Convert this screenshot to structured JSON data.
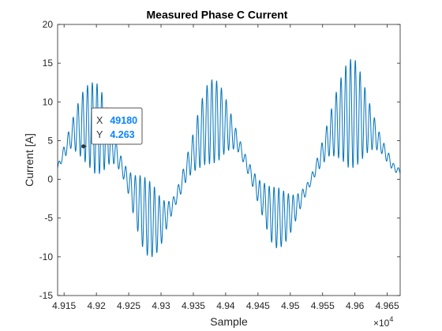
{
  "chart_data": {
    "type": "line",
    "title": "Measured Phase C Current",
    "xlabel": "Sample",
    "ylabel": "Current [A]",
    "xlim": [
      49140,
      49670
    ],
    "ylim": [
      -15,
      20
    ],
    "x_exponent_label": "×10",
    "x_exponent_power": "4",
    "x_ticks": [
      49150,
      49200,
      49250,
      49300,
      49350,
      49400,
      49450,
      49500,
      49550,
      49600,
      49650
    ],
    "x_tick_labels": [
      "4.915",
      "4.92",
      "4.925",
      "4.93",
      "4.935",
      "4.94",
      "4.945",
      "4.95",
      "4.955",
      "4.96",
      "4.965"
    ],
    "y_ticks": [
      -15,
      -10,
      -5,
      0,
      5,
      10,
      15,
      20
    ],
    "y_tick_labels": [
      "-15",
      "-10",
      "-5",
      "0",
      "5",
      "10",
      "15",
      "20"
    ],
    "grid": false,
    "line_color": "#0072bd",
    "series": [
      {
        "x": [
          49140,
          49150,
          49160,
          49170,
          49180,
          49190,
          49200,
          49210,
          49220,
          49230,
          49240,
          49250,
          49260,
          49270,
          49280,
          49290,
          49300,
          49310,
          49320,
          49330,
          49340,
          49350,
          49360,
          49370,
          49380,
          49390,
          49400,
          49410,
          49420,
          49430,
          49440,
          49450,
          49460,
          49470,
          49480,
          49490,
          49500,
          49510,
          49520,
          49530,
          49540,
          49550,
          49560,
          49570,
          49580,
          49590,
          49600,
          49610,
          49620,
          49630,
          49640,
          49650,
          49660,
          49670
        ],
        "envelope_center": [
          1.5,
          3.5,
          5.5,
          6.5,
          7.0,
          7.0,
          6.5,
          6.0,
          5.0,
          3.5,
          1.5,
          -0.5,
          -2.5,
          -4.0,
          -5.0,
          -5.5,
          -5.5,
          -4.5,
          -3.0,
          -1.0,
          1.5,
          3.5,
          5.5,
          7.0,
          7.5,
          7.5,
          7.0,
          6.0,
          4.5,
          2.5,
          0.5,
          -1.5,
          -3.0,
          -4.5,
          -5.0,
          -5.0,
          -4.5,
          -3.5,
          -2.0,
          -0.5,
          1.5,
          3.5,
          5.5,
          7.0,
          8.0,
          8.5,
          8.5,
          8.0,
          7.0,
          6.0,
          4.5,
          3.0,
          1.5,
          1.0
        ],
        "oscillation_amplitude": [
          0.3,
          0.8,
          1.5,
          3.0,
          4.5,
          5.5,
          6.0,
          5.0,
          3.0,
          1.5,
          1.0,
          1.5,
          3.0,
          4.5,
          5.0,
          4.5,
          3.0,
          1.5,
          0.8,
          1.0,
          1.5,
          2.5,
          4.0,
          5.0,
          5.5,
          5.0,
          3.5,
          2.0,
          1.0,
          0.8,
          1.0,
          1.5,
          2.5,
          3.5,
          4.0,
          3.5,
          2.5,
          1.5,
          0.8,
          0.5,
          0.8,
          1.5,
          2.5,
          4.0,
          5.5,
          7.0,
          7.0,
          5.5,
          3.5,
          2.0,
          1.0,
          0.8,
          0.5,
          0.3
        ]
      }
    ],
    "datatip": {
      "x_label": "X",
      "x_value": "49180",
      "y_label": "Y",
      "y_value": "4.263",
      "value_color": "#0a84ff",
      "point": [
        49180,
        4.263
      ]
    }
  }
}
